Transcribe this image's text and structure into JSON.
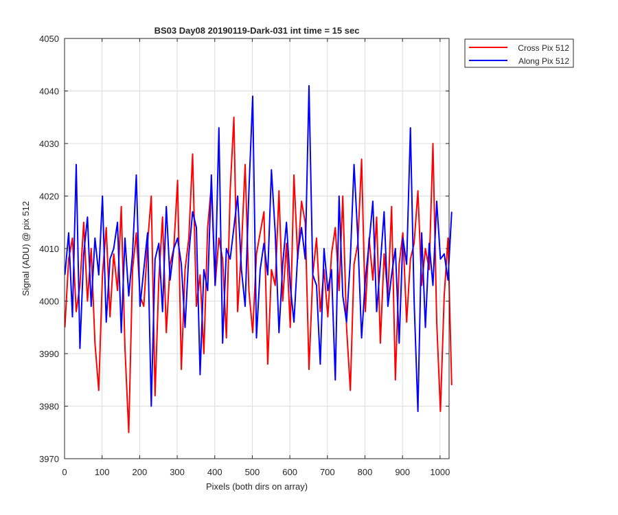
{
  "chart_data": {
    "type": "line",
    "title": "BS03 Day08 20190119-Dark-031 int time = 15 sec",
    "xlabel": "Pixels (both dirs on array)",
    "ylabel": "Signal (ADU) @ pix 512",
    "xlim": [
      0,
      1024
    ],
    "ylim": [
      3970,
      4050
    ],
    "xticks": [
      0,
      100,
      200,
      300,
      400,
      500,
      600,
      700,
      800,
      900,
      1000
    ],
    "yticks": [
      3970,
      3980,
      3990,
      4000,
      4010,
      4020,
      4030,
      4040,
      4050
    ],
    "xtick_labels": [
      "0",
      "100",
      "200",
      "300",
      "400",
      "500",
      "600",
      "700",
      "800",
      "900",
      "1000"
    ],
    "ytick_labels": [
      "3970",
      "3980",
      "3990",
      "4000",
      "4010",
      "4020",
      "4030",
      "4040",
      "4050"
    ],
    "grid": true,
    "legend_position": "outside-top-right",
    "x_start": 1,
    "x_step": 10,
    "series": [
      {
        "name": "Cross Pix 512",
        "color": "#ff0000",
        "values": [
          3995,
          4008,
          4012,
          3998,
          4003,
          4015,
          4000,
          4010,
          3992,
          3983,
          4005,
          4014,
          3997,
          4009,
          4002,
          4018,
          3991,
          3975,
          4006,
          4013,
          4001,
          3999,
          4011,
          4020,
          3982,
          4004,
          4016,
          3994,
          4007,
          4010,
          4023,
          3987,
          4006,
          4012,
          4028,
          3999,
          4005,
          3990,
          4014,
          4022,
          4003,
          4012,
          4008,
          3993,
          4021,
          4035,
          3998,
          4010,
          4026,
          4002,
          3994,
          4009,
          4013,
          4017,
          3988,
          4006,
          4003,
          4021,
          4000,
          4011,
          3995,
          4024,
          4008,
          4019,
          4015,
          3987,
          4005,
          4012,
          3998,
          4006,
          3997,
          4009,
          4014,
          4002,
          4020,
          3995,
          3983,
          4007,
          4011,
          4027,
          3998,
          4012,
          4004,
          4016,
          3992,
          4009,
          4001,
          4018,
          3985,
          4007,
          4013,
          3996,
          4008,
          4011,
          4021,
          4003,
          4010,
          4006,
          4030,
          3996,
          3979,
          4001,
          4012,
          3984
        ]
      },
      {
        "name": "Along Pix 512",
        "color": "#0000ff",
        "values": [
          4005,
          4013,
          3997,
          4026,
          3991,
          4009,
          4016,
          3999,
          4012,
          4005,
          4020,
          3996,
          4008,
          4010,
          4015,
          3994,
          4012,
          4001,
          4009,
          4024,
          3999,
          4006,
          4013,
          3980,
          4008,
          4011,
          3998,
          4018,
          4004,
          4010,
          4012,
          4007,
          3995,
          4009,
          4017,
          4014,
          3986,
          4006,
          4002,
          4024,
          4003,
          4033,
          3992,
          4010,
          4008,
          4014,
          4020,
          4006,
          3999,
          4021,
          4039,
          3993,
          4006,
          4011,
          4005,
          4025,
          4013,
          3994,
          4007,
          4015,
          4003,
          3996,
          4009,
          4014,
          4008,
          4041,
          4005,
          4003,
          3988,
          4010,
          4002,
          4006,
          3985,
          4020,
          4001,
          3996,
          4008,
          4026,
          4012,
          3993,
          4004,
          4011,
          4019,
          3998,
          4007,
          4017,
          3999,
          4005,
          4010,
          3992,
          4012,
          4007,
          4033,
          4000,
          3979,
          4013,
          3995,
          4011,
          4003,
          4019,
          4008,
          4009,
          4004,
          4017
        ]
      }
    ]
  }
}
